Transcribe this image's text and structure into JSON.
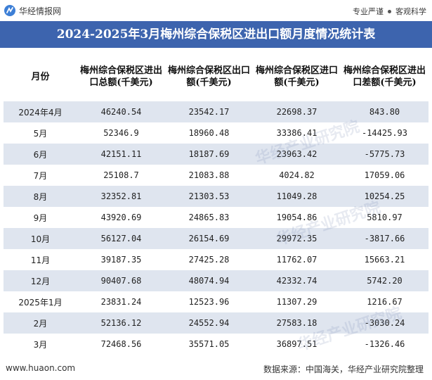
{
  "header": {
    "brand_name": "华经情报网",
    "tagline_left": "专业严谨",
    "tagline_right": "客观科学"
  },
  "title": "2024-2025年3月梅州综合保税区进出口额月度情况统计表",
  "table": {
    "columns": [
      "月份",
      "梅州综合保税区进出口总额(千美元)",
      "梅州综合保税区出口额(千美元)",
      "梅州综合保税区进口额(千美元)",
      "梅州综合保税区进出口差额(千美元)"
    ],
    "rows": [
      [
        "2024年4月",
        "46240.54",
        "23542.17",
        "22698.37",
        "843.80"
      ],
      [
        "5月",
        "52346.9",
        "18960.48",
        "33386.41",
        "-14425.93"
      ],
      [
        "6月",
        "42151.11",
        "18187.69",
        "23963.42",
        "-5775.73"
      ],
      [
        "7月",
        "25108.7",
        "21083.88",
        "4024.82",
        "17059.06"
      ],
      [
        "8月",
        "32352.81",
        "21303.53",
        "11049.28",
        "10254.25"
      ],
      [
        "9月",
        "43920.69",
        "24865.83",
        "19054.86",
        "5810.97"
      ],
      [
        "10月",
        "56127.04",
        "26154.69",
        "29972.35",
        "-3817.66"
      ],
      [
        "11月",
        "39187.35",
        "27425.28",
        "11762.07",
        "15663.21"
      ],
      [
        "12月",
        "90407.68",
        "48074.94",
        "42332.74",
        "5742.20"
      ],
      [
        "2025年1月",
        "23831.24",
        "12523.96",
        "11307.29",
        "1216.67"
      ],
      [
        "2月",
        "52136.12",
        "24552.94",
        "27583.18",
        "-3030.24"
      ],
      [
        "3月",
        "72468.56",
        "35571.05",
        "36897.51",
        "-1326.46"
      ]
    ]
  },
  "watermarks": [
    "华经产业研究院",
    "华经产业研究院",
    "华经产业研究院"
  ],
  "footer": {
    "website": "www.huaon.com",
    "source": "数据来源：中国海关，华经产业研究院整理"
  }
}
